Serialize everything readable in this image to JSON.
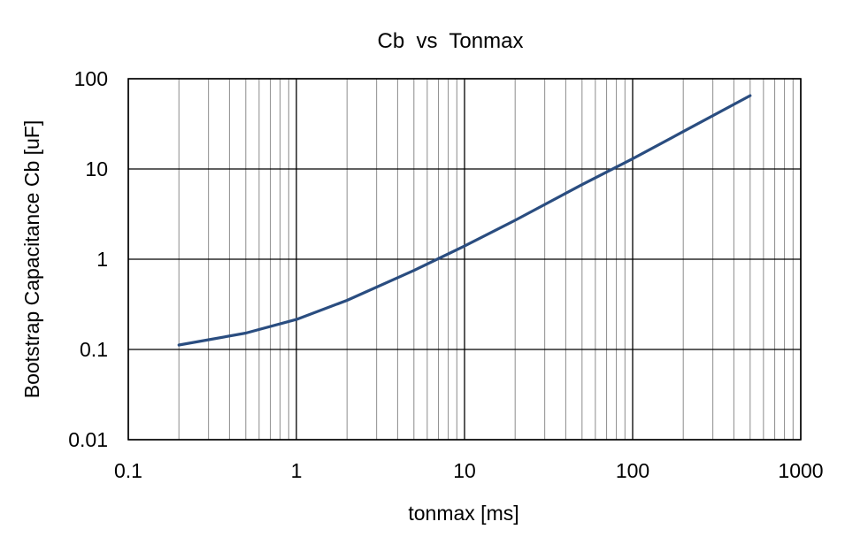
{
  "chart_data": {
    "type": "line",
    "title": "Cb  vs  Tonmax",
    "xlabel": "tonmax [ms]",
    "ylabel": "Bootstrap Capacitance Cb [uF]",
    "xscale": "log",
    "yscale": "log",
    "xlim": [
      0.1,
      1000
    ],
    "ylim": [
      0.01,
      100
    ],
    "xticks": [
      0.1,
      1,
      10,
      100,
      1000
    ],
    "xtick_labels": [
      "0.1",
      "1",
      "10",
      "100",
      "1000"
    ],
    "yticks": [
      0.01,
      0.1,
      1,
      10,
      100
    ],
    "ytick_labels": [
      "0.01",
      "0.1",
      "1",
      "10",
      "100"
    ],
    "grid": true,
    "minor_grid": true,
    "legend": "none",
    "line_color": "#2a4d80",
    "series": [
      {
        "x": [
          0.2,
          0.5,
          1,
          2,
          5,
          10,
          20,
          50,
          100,
          200,
          500
        ],
        "y": [
          0.112,
          0.152,
          0.215,
          0.35,
          0.75,
          1.4,
          2.7,
          6.7,
          13,
          26,
          65
        ]
      }
    ]
  }
}
